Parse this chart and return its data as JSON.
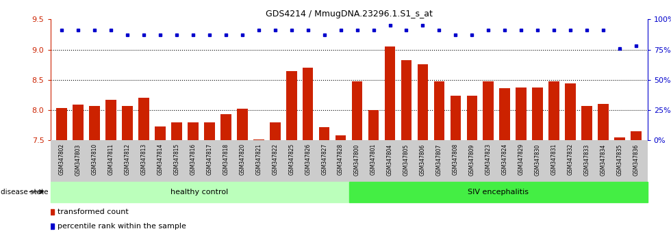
{
  "title": "GDS4214 / MmugDNA.23296.1.S1_s_at",
  "samples": [
    "GSM347802",
    "GSM347803",
    "GSM347810",
    "GSM347811",
    "GSM347812",
    "GSM347813",
    "GSM347814",
    "GSM347815",
    "GSM347816",
    "GSM347817",
    "GSM347818",
    "GSM347820",
    "GSM347821",
    "GSM347822",
    "GSM347825",
    "GSM347826",
    "GSM347827",
    "GSM347828",
    "GSM347800",
    "GSM347801",
    "GSM347804",
    "GSM347805",
    "GSM347806",
    "GSM347807",
    "GSM347808",
    "GSM347809",
    "GSM347823",
    "GSM347824",
    "GSM347829",
    "GSM347830",
    "GSM347831",
    "GSM347832",
    "GSM347833",
    "GSM347834",
    "GSM347835",
    "GSM347836"
  ],
  "bar_values": [
    8.04,
    8.09,
    8.07,
    8.17,
    8.07,
    8.2,
    7.73,
    7.8,
    7.8,
    7.8,
    7.93,
    8.02,
    7.52,
    7.8,
    8.65,
    8.7,
    7.72,
    7.58,
    8.47,
    8.0,
    9.05,
    8.83,
    8.76,
    8.47,
    8.24,
    8.24,
    8.47,
    8.36,
    8.37,
    8.37,
    8.47,
    8.44,
    8.07,
    8.1,
    7.55,
    7.65
  ],
  "percentile_values": [
    91,
    91,
    91,
    91,
    87,
    87,
    87,
    87,
    87,
    87,
    87,
    87,
    91,
    91,
    91,
    91,
    87,
    91,
    91,
    91,
    95,
    91,
    95,
    91,
    87,
    87,
    91,
    91,
    91,
    91,
    91,
    91,
    91,
    91,
    76,
    78
  ],
  "healthy_count": 18,
  "ylim_left": [
    7.5,
    9.5
  ],
  "ylim_right": [
    0,
    100
  ],
  "yticks_left": [
    7.5,
    8.0,
    8.5,
    9.0,
    9.5
  ],
  "yticks_right": [
    0,
    25,
    50,
    75,
    100
  ],
  "bar_color": "#cc2200",
  "dot_color": "#0000cc",
  "healthy_color": "#bbffbb",
  "siv_color": "#44ee44",
  "tick_bg_color": "#cccccc",
  "legend_bar_label": "transformed count",
  "legend_dot_label": "percentile rank within the sample",
  "label_healthy": "healthy control",
  "label_siv": "SIV encephalitis",
  "label_disease": "disease state"
}
